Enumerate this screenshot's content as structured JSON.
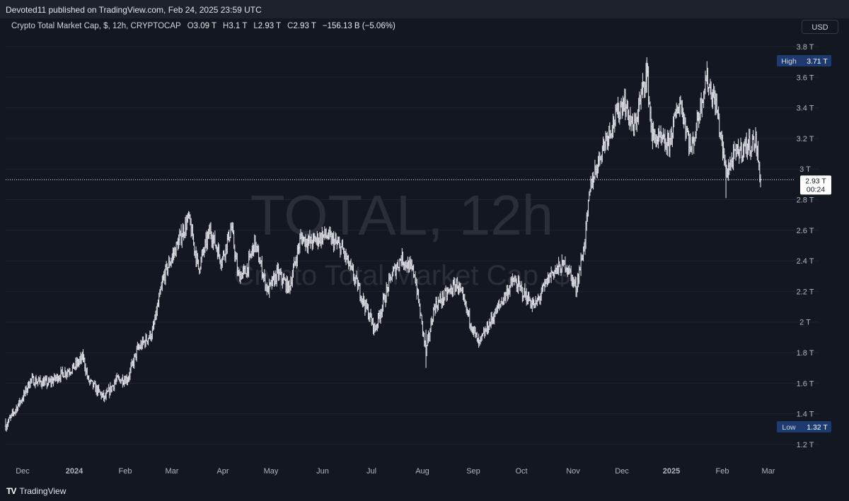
{
  "header": {
    "published": "Devoted11 published on TradingView.com, Feb 24, 2025 23:59 UTC"
  },
  "legend": {
    "symbol": "Crypto Total Market Cap, $, 12h, CRYPTOCAP",
    "open_label": "O",
    "open": "3.09 T",
    "high_label": "H",
    "high": "3.1 T",
    "low_label": "L",
    "low": "2.93 T",
    "close_label": "C",
    "close": "2.93 T",
    "change": "−156.13 B (−5.06%)"
  },
  "currency_button": "USD",
  "footer": {
    "brand": "TradingView",
    "logo": "TV"
  },
  "chart_data": {
    "type": "bar",
    "style": "ohlc",
    "watermark": [
      "TOTAL, 12h",
      "Crypto Total Market Cap, $"
    ],
    "x_ticks": [
      "Dec",
      "2024",
      "Feb",
      "Mar",
      "Apr",
      "May",
      "Jun",
      "Jul",
      "Aug",
      "Sep",
      "Oct",
      "Nov",
      "Dec",
      "2025",
      "Feb",
      "Mar"
    ],
    "x_tick_bold": [
      false,
      true,
      false,
      false,
      false,
      false,
      false,
      false,
      false,
      false,
      false,
      false,
      false,
      true,
      false,
      false
    ],
    "y_ticks": [
      "3.8 T",
      "3.6 T",
      "3.4 T",
      "3.2 T",
      "3 T",
      "2.8 T",
      "2.6 T",
      "2.4 T",
      "2.2 T",
      "2 T",
      "1.8 T",
      "1.6 T",
      "1.4 T",
      "1.2 T"
    ],
    "y_tick_values": [
      3.8,
      3.6,
      3.4,
      3.2,
      3.0,
      2.8,
      2.6,
      2.4,
      2.2,
      2.0,
      1.8,
      1.6,
      1.4,
      1.2
    ],
    "ylim": [
      1.1,
      3.95
    ],
    "unit": "T USD",
    "date_range": [
      "2023-11-24",
      "2025-02-24"
    ],
    "high_marker": {
      "label": "High",
      "value": "3.71 T",
      "level": 3.71
    },
    "low_marker": {
      "label": "Low",
      "value": "1.32 T",
      "level": 1.32
    },
    "last_price": {
      "value": "2.93 T",
      "countdown": "00:24",
      "level": 2.93
    },
    "series_keypoints": [
      [
        "2023-11-24",
        1.32
      ],
      [
        "2023-12-05",
        1.52
      ],
      [
        "2023-12-09",
        1.62
      ],
      [
        "2023-12-20",
        1.6
      ],
      [
        "2023-12-28",
        1.66
      ],
      [
        "2024-01-04",
        1.7
      ],
      [
        "2024-01-10",
        1.77
      ],
      [
        "2024-01-13",
        1.62
      ],
      [
        "2024-01-23",
        1.5
      ],
      [
        "2024-01-30",
        1.62
      ],
      [
        "2024-02-06",
        1.63
      ],
      [
        "2024-02-12",
        1.82
      ],
      [
        "2024-02-21",
        1.93
      ],
      [
        "2024-02-28",
        2.3
      ],
      [
        "2024-03-05",
        2.45
      ],
      [
        "2024-03-14",
        2.68
      ],
      [
        "2024-03-20",
        2.35
      ],
      [
        "2024-03-27",
        2.6
      ],
      [
        "2024-04-03",
        2.4
      ],
      [
        "2024-04-09",
        2.62
      ],
      [
        "2024-04-13",
        2.3
      ],
      [
        "2024-04-18",
        2.33
      ],
      [
        "2024-04-23",
        2.52
      ],
      [
        "2024-05-01",
        2.2
      ],
      [
        "2024-05-07",
        2.32
      ],
      [
        "2024-05-14",
        2.22
      ],
      [
        "2024-05-21",
        2.55
      ],
      [
        "2024-05-27",
        2.52
      ],
      [
        "2024-06-05",
        2.57
      ],
      [
        "2024-06-15",
        2.48
      ],
      [
        "2024-06-24",
        2.25
      ],
      [
        "2024-07-05",
        1.95
      ],
      [
        "2024-07-15",
        2.3
      ],
      [
        "2024-07-21",
        2.42
      ],
      [
        "2024-07-29",
        2.32
      ],
      [
        "2024-08-05",
        1.8
      ],
      [
        "2024-08-10",
        2.1
      ],
      [
        "2024-08-24",
        2.25
      ],
      [
        "2024-09-06",
        1.85
      ],
      [
        "2024-09-14",
        2.02
      ],
      [
        "2024-09-27",
        2.27
      ],
      [
        "2024-10-10",
        2.1
      ],
      [
        "2024-10-20",
        2.32
      ],
      [
        "2024-10-29",
        2.38
      ],
      [
        "2024-11-04",
        2.22
      ],
      [
        "2024-11-09",
        2.5
      ],
      [
        "2024-11-13",
        2.9
      ],
      [
        "2024-11-22",
        3.2
      ],
      [
        "2024-12-03",
        3.45
      ],
      [
        "2024-12-09",
        3.25
      ],
      [
        "2024-12-17",
        3.65
      ],
      [
        "2024-12-20",
        3.22
      ],
      [
        "2024-12-30",
        3.15
      ],
      [
        "2025-01-06",
        3.45
      ],
      [
        "2025-01-13",
        3.12
      ],
      [
        "2025-01-22",
        3.6
      ],
      [
        "2025-01-28",
        3.42
      ],
      [
        "2025-02-03",
        2.98
      ],
      [
        "2025-02-09",
        3.1
      ],
      [
        "2025-02-15",
        3.15
      ],
      [
        "2025-02-21",
        3.18
      ],
      [
        "2025-02-24",
        2.93
      ]
    ]
  }
}
